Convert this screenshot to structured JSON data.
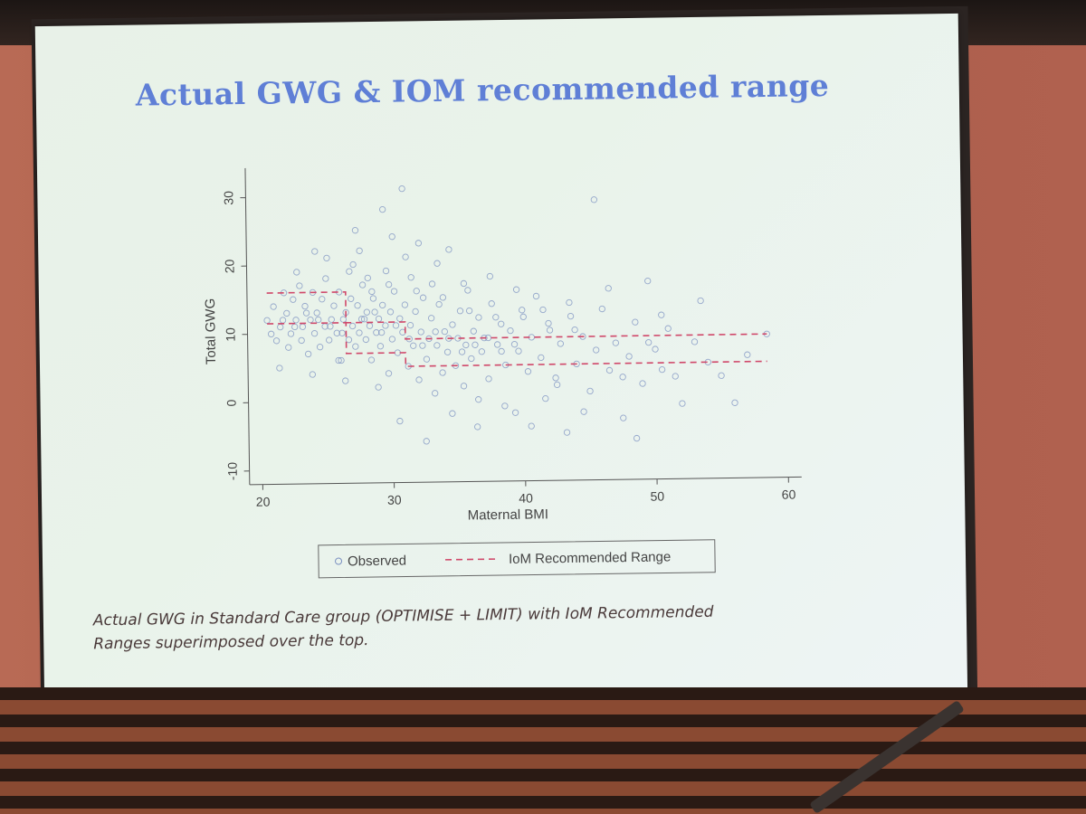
{
  "slide": {
    "title": "Actual GWG & IOM recommended range",
    "caption_line1": "Actual GWG in Standard Care group (OPTIMISE + LIMIT) with IoM Recommended",
    "caption_line2": "Ranges superimposed over the top."
  },
  "chart_data": {
    "type": "scatter",
    "title": "",
    "xlabel": "Maternal BMI",
    "ylabel": "Total GWG",
    "xlim": [
      19,
      61
    ],
    "ylim": [
      -12,
      33
    ],
    "xticks": [
      20,
      30,
      40,
      50,
      60
    ],
    "yticks": [
      -10,
      0,
      10,
      20,
      30
    ],
    "grid": false,
    "legend": {
      "placement": "bottom-center",
      "entries": [
        "Observed",
        "IoM Recommended Range"
      ]
    },
    "colors": {
      "observed": "#7a8fc0",
      "range": "#d0486a"
    },
    "series": [
      {
        "name": "Observed",
        "points": [
          [
            20.5,
            12
          ],
          [
            21,
            14
          ],
          [
            21.2,
            9
          ],
          [
            21.5,
            11
          ],
          [
            21.8,
            16
          ],
          [
            22,
            13
          ],
          [
            22.1,
            8
          ],
          [
            22.3,
            10
          ],
          [
            22.5,
            15
          ],
          [
            22.7,
            12
          ],
          [
            23,
            17
          ],
          [
            23.1,
            9
          ],
          [
            23.2,
            11
          ],
          [
            23.4,
            14
          ],
          [
            23.6,
            7
          ],
          [
            23.8,
            12
          ],
          [
            24,
            16
          ],
          [
            24.1,
            10
          ],
          [
            24.3,
            13
          ],
          [
            24.5,
            8
          ],
          [
            24.7,
            15
          ],
          [
            24.9,
            11
          ],
          [
            25,
            18
          ],
          [
            25.2,
            9
          ],
          [
            25.4,
            12
          ],
          [
            25.6,
            14
          ],
          [
            25.8,
            10
          ],
          [
            26,
            16
          ],
          [
            26.1,
            6
          ],
          [
            26.3,
            12
          ],
          [
            26.5,
            13
          ],
          [
            26.7,
            9
          ],
          [
            26.9,
            15
          ],
          [
            27,
            11
          ],
          [
            27.1,
            20
          ],
          [
            27.2,
            8
          ],
          [
            27.4,
            14
          ],
          [
            27.5,
            10
          ],
          [
            27.7,
            12
          ],
          [
            27.8,
            17
          ],
          [
            28,
            9
          ],
          [
            28.1,
            13
          ],
          [
            28.3,
            11
          ],
          [
            28.4,
            6
          ],
          [
            28.6,
            15
          ],
          [
            28.8,
            10
          ],
          [
            29,
            12
          ],
          [
            29.1,
            8
          ],
          [
            29.3,
            14
          ],
          [
            29.5,
            11
          ],
          [
            29.7,
            4
          ],
          [
            29.9,
            13
          ],
          [
            30,
            9
          ],
          [
            30.2,
            16
          ],
          [
            30.4,
            7
          ],
          [
            30.6,
            12
          ],
          [
            30.8,
            10
          ],
          [
            31,
            14
          ],
          [
            31.2,
            5
          ],
          [
            31.4,
            11
          ],
          [
            31.6,
            8
          ],
          [
            31.8,
            13
          ],
          [
            32,
            3
          ],
          [
            32.2,
            10
          ],
          [
            32.4,
            15
          ],
          [
            32.6,
            6
          ],
          [
            32.8,
            9
          ],
          [
            33,
            12
          ],
          [
            33.2,
            1
          ],
          [
            33.4,
            8
          ],
          [
            33.6,
            14
          ],
          [
            33.8,
            4
          ],
          [
            34,
            10
          ],
          [
            34.2,
            7
          ],
          [
            34.4,
            22
          ],
          [
            34.6,
            11
          ],
          [
            34.8,
            5
          ],
          [
            35,
            9
          ],
          [
            35.2,
            13
          ],
          [
            35.4,
            2
          ],
          [
            35.6,
            8
          ],
          [
            35.8,
            16
          ],
          [
            36,
            6
          ],
          [
            36.2,
            10
          ],
          [
            36.4,
            -4
          ],
          [
            36.6,
            12
          ],
          [
            36.8,
            7
          ],
          [
            37,
            9
          ],
          [
            37.3,
            3
          ],
          [
            37.6,
            14
          ],
          [
            38,
            8
          ],
          [
            38.3,
            11
          ],
          [
            38.6,
            5
          ],
          [
            39,
            10
          ],
          [
            39.3,
            -2
          ],
          [
            39.6,
            7
          ],
          [
            40,
            12
          ],
          [
            40.3,
            4
          ],
          [
            40.6,
            9
          ],
          [
            41,
            15
          ],
          [
            41.3,
            6
          ],
          [
            41.6,
            0
          ],
          [
            42,
            10
          ],
          [
            42.4,
            3
          ],
          [
            42.8,
            8
          ],
          [
            43.2,
            -5
          ],
          [
            43.6,
            12
          ],
          [
            44,
            5
          ],
          [
            44.5,
            9
          ],
          [
            45,
            1
          ],
          [
            45.5,
            7
          ],
          [
            46,
            13
          ],
          [
            46.5,
            4
          ],
          [
            47,
            8
          ],
          [
            47.5,
            -3
          ],
          [
            48,
            6
          ],
          [
            48.5,
            11
          ],
          [
            49,
            2
          ],
          [
            49.5,
            17
          ],
          [
            50,
            7
          ],
          [
            50.5,
            4
          ],
          [
            51,
            10
          ],
          [
            52,
            -1
          ],
          [
            53,
            8
          ],
          [
            53.5,
            14
          ],
          [
            54,
            5
          ],
          [
            55,
            3
          ],
          [
            56,
            -1
          ],
          [
            57,
            6
          ],
          [
            58.5,
            9
          ],
          [
            21.4,
            5
          ],
          [
            22.8,
            19
          ],
          [
            23.9,
            4
          ],
          [
            25.1,
            21
          ],
          [
            26.4,
            3
          ],
          [
            27.6,
            22
          ],
          [
            28.9,
            2
          ],
          [
            29.6,
            19
          ],
          [
            30.5,
            -3
          ],
          [
            31.5,
            18
          ],
          [
            32.5,
            -6
          ],
          [
            33.5,
            20
          ],
          [
            34.5,
            -2
          ],
          [
            35.5,
            17
          ],
          [
            36.5,
            0
          ],
          [
            37.5,
            18
          ],
          [
            38.5,
            -1
          ],
          [
            39.5,
            16
          ],
          [
            40.5,
            -4
          ],
          [
            41.5,
            13
          ],
          [
            42.5,
            2
          ],
          [
            43.5,
            14
          ],
          [
            44.5,
            -2
          ],
          [
            45.5,
            29
          ],
          [
            46.5,
            16
          ],
          [
            47.5,
            3
          ],
          [
            48.5,
            -6
          ],
          [
            49.5,
            8
          ],
          [
            50.5,
            12
          ],
          [
            51.5,
            3
          ],
          [
            24.2,
            22
          ],
          [
            25.9,
            6
          ],
          [
            27.3,
            25
          ],
          [
            28.2,
            18
          ],
          [
            29.4,
            28
          ],
          [
            30.1,
            24
          ],
          [
            31.1,
            21
          ],
          [
            32.1,
            23
          ],
          [
            33.1,
            17
          ],
          [
            30.9,
            31
          ],
          [
            26.8,
            19
          ],
          [
            28.5,
            16
          ],
          [
            29.8,
            17
          ],
          [
            31.9,
            16
          ],
          [
            33.9,
            15
          ],
          [
            35.9,
            13
          ],
          [
            37.9,
            12
          ],
          [
            39.9,
            13
          ],
          [
            41.9,
            11
          ],
          [
            43.9,
            10
          ],
          [
            20.8,
            10
          ],
          [
            21.7,
            12
          ],
          [
            22.6,
            11
          ],
          [
            23.5,
            13
          ],
          [
            24.4,
            12
          ],
          [
            25.3,
            11
          ],
          [
            26.2,
            10
          ],
          [
            27.9,
            12
          ],
          [
            28.7,
            13
          ],
          [
            29.2,
            10
          ],
          [
            30.3,
            11
          ],
          [
            31.3,
            9
          ],
          [
            32.3,
            8
          ],
          [
            33.3,
            10
          ],
          [
            34.3,
            9
          ],
          [
            35.3,
            7
          ],
          [
            36.3,
            8
          ],
          [
            37.3,
            9
          ],
          [
            38.3,
            7
          ],
          [
            39.3,
            8
          ]
        ]
      }
    ],
    "range_segments": [
      {
        "bmi_from": 20.5,
        "bmi_to": 26.5,
        "lower": 11.5,
        "upper": 16
      },
      {
        "bmi_from": 26.5,
        "bmi_to": 31,
        "lower": 7,
        "upper": 11.5
      },
      {
        "bmi_from": 31,
        "bmi_to": 58.5,
        "lower": 5,
        "upper": 9
      }
    ]
  }
}
